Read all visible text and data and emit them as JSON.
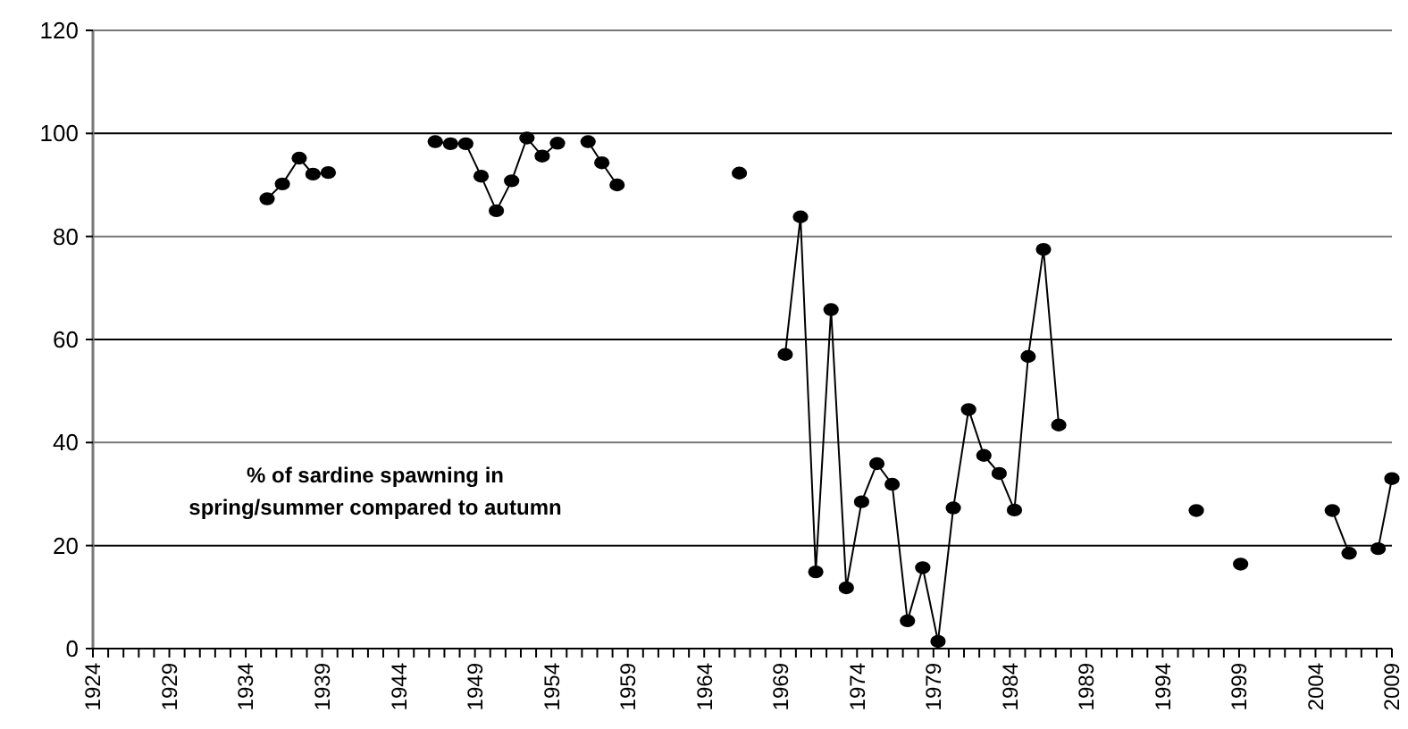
{
  "chart_data": {
    "type": "line",
    "x": [
      1935.4,
      1936.4,
      1937.5,
      1938.4,
      1939.4,
      1940.4,
      1946.4,
      1947.4,
      1948.4,
      1949.4,
      1950.4,
      1951.4,
      1952.4,
      1953.4,
      1954.4,
      1955.4,
      1956.4,
      1957.3,
      1958.3,
      1962,
      1966.3,
      1968,
      1969.3,
      1970.3,
      1971.3,
      1972.3,
      1973.3,
      1974.3,
      1975.3,
      1976.3,
      1977.3,
      1978.3,
      1979.3,
      1980.3,
      1981.3,
      1982.3,
      1983.3,
      1984.3,
      1985.2,
      1986.2,
      1987.2,
      1990,
      1996.2,
      1998,
      1999.1,
      2002,
      2005.1,
      2006.2,
      2007.2,
      2008.1,
      2009
    ],
    "series": [
      {
        "color": "#000000",
        "values": [
          87.3,
          90.2,
          95.2,
          92.1,
          92.4,
          null,
          98.4,
          98.0,
          98.0,
          91.7,
          85.0,
          90.8,
          99.1,
          95.6,
          98.1,
          null,
          98.4,
          94.3,
          90.0,
          null,
          92.3,
          null,
          57.1,
          83.8,
          14.9,
          65.8,
          11.8,
          28.5,
          35.9,
          31.9,
          5.4,
          15.7,
          1.4,
          27.3,
          46.4,
          37.5,
          34.0,
          26.9,
          56.7,
          77.5,
          43.4,
          null,
          26.8,
          null,
          16.4,
          null,
          26.8,
          18.5,
          null,
          19.4,
          33.0
        ]
      }
    ],
    "xlim": [
      1924,
      2009
    ],
    "xticks": [
      1924,
      {
        "value": 1925,
        "label": null
      },
      {
        "value": 1926,
        "label": null
      },
      {
        "value": 1927,
        "label": null
      },
      {
        "value": 1928,
        "label": null
      },
      1929,
      {
        "value": 1930,
        "label": null
      },
      {
        "value": 1931,
        "label": null
      },
      {
        "value": 1932,
        "label": null
      },
      {
        "value": 1933,
        "label": null
      },
      1934,
      {
        "value": 1935,
        "label": null
      },
      {
        "value": 1936,
        "label": null
      },
      {
        "value": 1937,
        "label": null
      },
      {
        "value": 1938,
        "label": null
      },
      1939,
      {
        "value": 1940,
        "label": null
      },
      {
        "value": 1941,
        "label": null
      },
      {
        "value": 1942,
        "label": null
      },
      {
        "value": 1943,
        "label": null
      },
      1944,
      {
        "value": 1945,
        "label": null
      },
      {
        "value": 1946,
        "label": null
      },
      {
        "value": 1947,
        "label": null
      },
      {
        "value": 1948,
        "label": null
      },
      1949,
      {
        "value": 1950,
        "label": null
      },
      {
        "value": 1951,
        "label": null
      },
      {
        "value": 1952,
        "label": null
      },
      {
        "value": 1953,
        "label": null
      },
      1954,
      {
        "value": 1955,
        "label": null
      },
      {
        "value": 1956,
        "label": null
      },
      {
        "value": 1957,
        "label": null
      },
      {
        "value": 1958,
        "label": null
      },
      1959,
      {
        "value": 1960,
        "label": null
      },
      {
        "value": 1961,
        "label": null
      },
      {
        "value": 1962,
        "label": null
      },
      {
        "value": 1963,
        "label": null
      },
      1964,
      {
        "value": 1965,
        "label": null
      },
      {
        "value": 1966,
        "label": null
      },
      {
        "value": 1967,
        "label": null
      },
      {
        "value": 1968,
        "label": null
      },
      1969,
      {
        "value": 1970,
        "label": null
      },
      {
        "value": 1971,
        "label": null
      },
      {
        "value": 1972,
        "label": null
      },
      {
        "value": 1973,
        "label": null
      },
      1974,
      {
        "value": 1975,
        "label": null
      },
      {
        "value": 1976,
        "label": null
      },
      {
        "value": 1977,
        "label": null
      },
      {
        "value": 1978,
        "label": null
      },
      1979,
      {
        "value": 1980,
        "label": null
      },
      {
        "value": 1981,
        "label": null
      },
      {
        "value": 1982,
        "label": null
      },
      {
        "value": 1983,
        "label": null
      },
      1984,
      {
        "value": 1985,
        "label": null
      },
      {
        "value": 1986,
        "label": null
      },
      {
        "value": 1987,
        "label": null
      },
      {
        "value": 1988,
        "label": null
      },
      1989,
      {
        "value": 1990,
        "label": null
      },
      {
        "value": 1991,
        "label": null
      },
      {
        "value": 1992,
        "label": null
      },
      {
        "value": 1993,
        "label": null
      },
      1994,
      {
        "value": 1995,
        "label": null
      },
      {
        "value": 1996,
        "label": null
      },
      {
        "value": 1997,
        "label": null
      },
      {
        "value": 1998,
        "label": null
      },
      1999,
      {
        "value": 2000,
        "label": null
      },
      {
        "value": 2001,
        "label": null
      },
      {
        "value": 2002,
        "label": null
      },
      {
        "value": 2003,
        "label": null
      },
      2004,
      {
        "value": 2005,
        "label": null
      },
      {
        "value": 2006,
        "label": null
      },
      {
        "value": 2007,
        "label": null
      },
      {
        "value": 2008,
        "label": null
      },
      2009
    ],
    "ylim": [
      0,
      120
    ],
    "yticks": [
      0,
      20,
      40,
      60,
      80,
      100,
      120
    ],
    "grid": "y",
    "marker": "circle",
    "line_style": "solid",
    "annotations": [
      "% of sardine spawning in\nspring/summer compared to autumn"
    ]
  }
}
